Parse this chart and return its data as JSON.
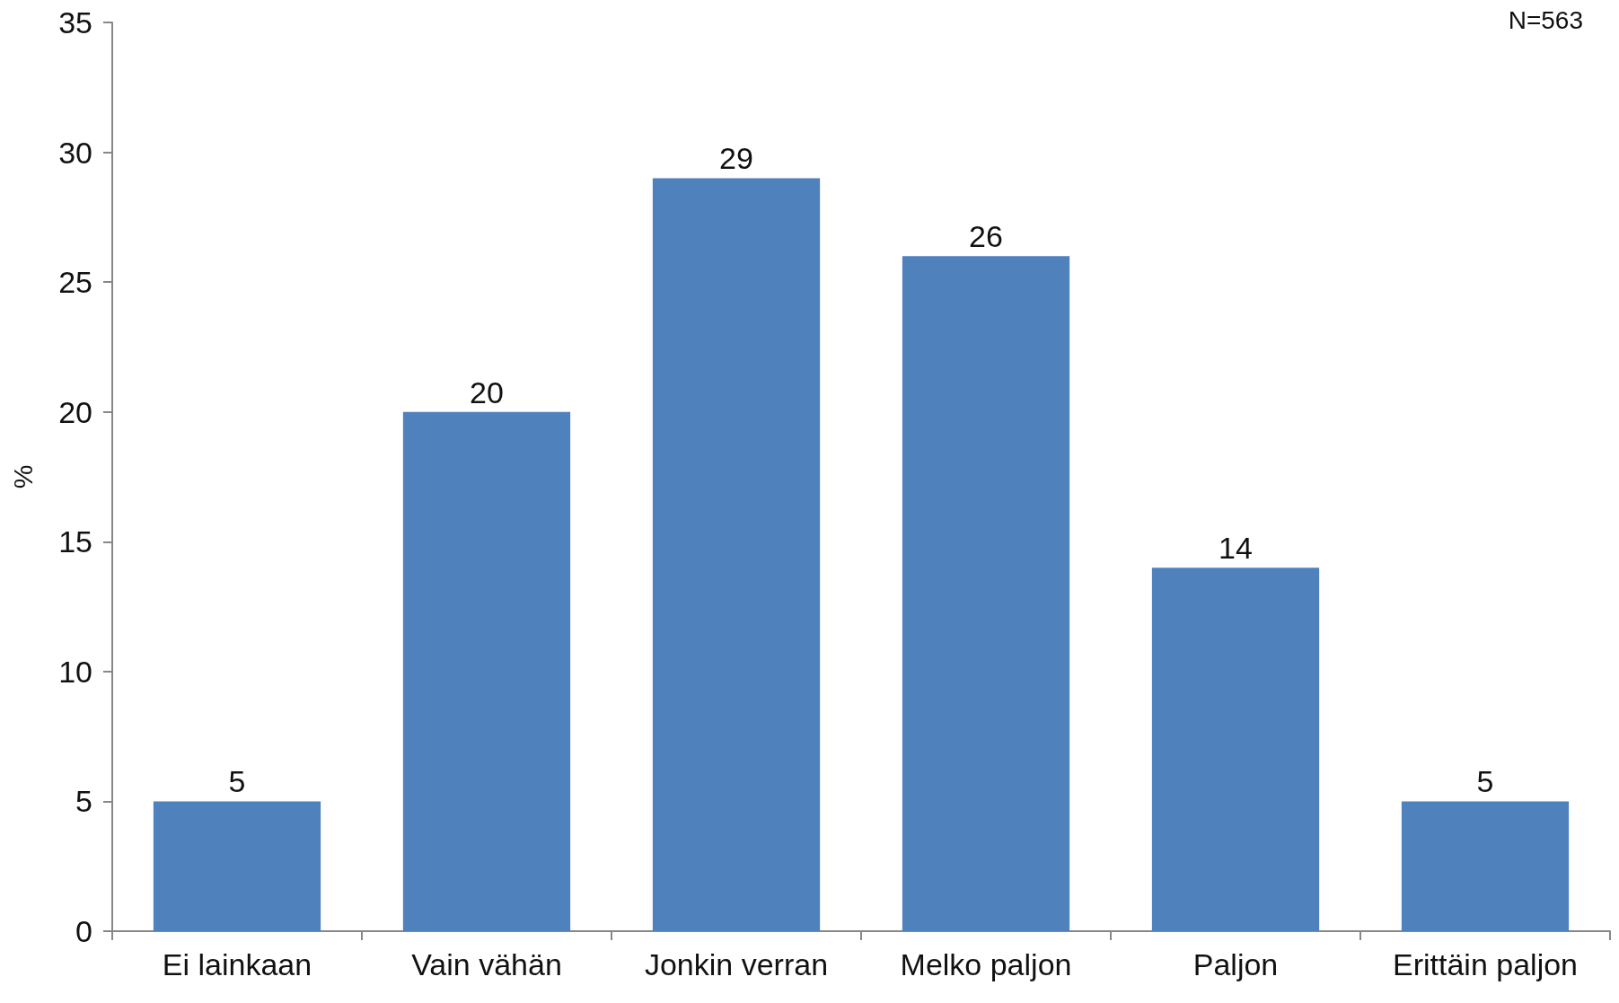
{
  "chart_data": {
    "type": "bar",
    "ylabel": "%",
    "annotations": [
      "N=563"
    ],
    "categories": [
      "Ei lainkaan",
      "Vain vähän",
      "Jonkin verran",
      "Melko paljon",
      "Paljon",
      "Erittäin paljon"
    ],
    "values": [
      5,
      20,
      29,
      26,
      14,
      5
    ],
    "color": "#4f81bd",
    "data_labels": true,
    "ylim": [
      0,
      35
    ],
    "yticks": [
      0,
      5,
      10,
      15,
      20,
      25,
      30,
      35
    ]
  }
}
